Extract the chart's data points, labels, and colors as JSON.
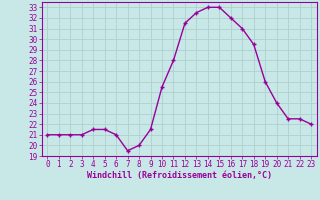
{
  "x": [
    0,
    1,
    2,
    3,
    4,
    5,
    6,
    7,
    8,
    9,
    10,
    11,
    12,
    13,
    14,
    15,
    16,
    17,
    18,
    19,
    20,
    21,
    22,
    23
  ],
  "y": [
    21,
    21,
    21,
    21,
    21.5,
    21.5,
    21,
    19.5,
    20,
    21.5,
    25.5,
    28,
    31.5,
    32.5,
    33,
    33,
    32,
    31,
    29.5,
    26,
    24,
    22.5,
    22.5,
    22
  ],
  "line_color": "#990099",
  "marker": "+",
  "bg_color": "#c8e8e8",
  "grid_color": "#b0d0d0",
  "xlabel": "Windchill (Refroidissement éolien,°C)",
  "ylim": [
    19,
    33.5
  ],
  "xlim": [
    -0.5,
    23.5
  ],
  "yticks": [
    19,
    20,
    21,
    22,
    23,
    24,
    25,
    26,
    27,
    28,
    29,
    30,
    31,
    32,
    33
  ],
  "xticks": [
    0,
    1,
    2,
    3,
    4,
    5,
    6,
    7,
    8,
    9,
    10,
    11,
    12,
    13,
    14,
    15,
    16,
    17,
    18,
    19,
    20,
    21,
    22,
    23
  ],
  "font_size": 5.5,
  "xlabel_fontsize": 6.0,
  "line_width": 1.0,
  "marker_size": 3
}
